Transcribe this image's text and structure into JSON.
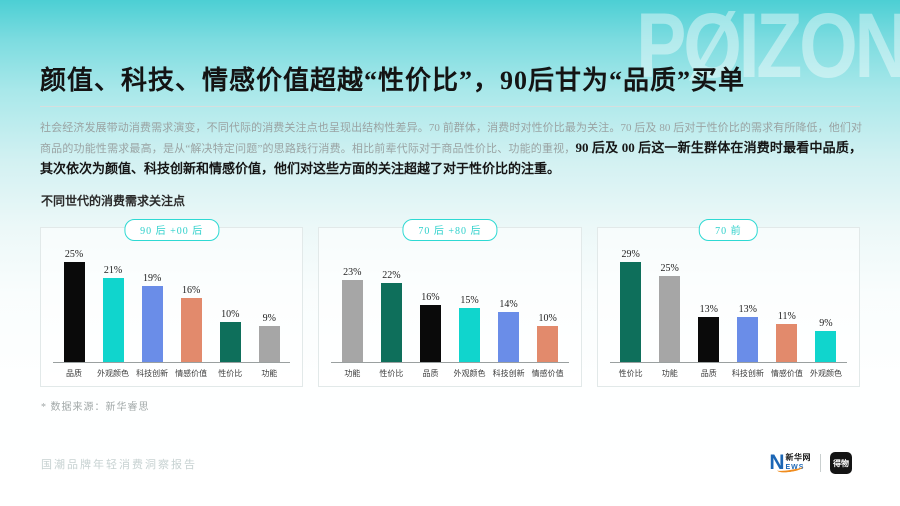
{
  "slide": {
    "watermark": "PØIZON",
    "title": "颜值、科技、情感价值超越“性价比”，90后甘为“品质”买单",
    "body_regular": "社会经济发展带动消费需求演变，不同代际的消费关注点也呈现出结构性差异。70 前群体，消费时对性价比最为关注。70 后及 80 后对于性价比的需求有所降低，他们对商品的功能性需求最高，是从“解决特定问题”的思路践行消费。相比前辈代际对于商品性价比、功能的重视，",
    "body_bold": "90 后及 00 后这一新生群体在消费时最看中品质，其次依次为颜值、科技创新和情感价值，他们对这些方面的关注超越了对于性价比的注重。",
    "section_label": "不同世代的消费需求关注点",
    "source_note": "* 数据来源：新华睿思",
    "footer_text": "国潮品牌年轻消费洞察报告",
    "logos": {
      "xinhua_n": "N",
      "xinhua_cn": "新华网",
      "xinhua_en": "EWS",
      "dewu": "得物"
    }
  },
  "colors": {
    "accent_cyan": "#2ed9d3",
    "bar_black": "#0a0a0a",
    "bar_cyan": "#10d5cd",
    "bar_blue": "#6a8de8",
    "bar_salmon": "#e28a6c",
    "bar_green": "#0e6f5b",
    "bar_gray": "#a6a6a6",
    "header_gradient_top": "#4ccfd4",
    "header_gradient_bottom": "#ffffff"
  },
  "chart_data": [
    {
      "type": "bar",
      "title": "90 后 +00 后",
      "categories": [
        "品质",
        "外观颜色",
        "科技创新",
        "情感价值",
        "性价比",
        "功能"
      ],
      "values": [
        25,
        21,
        19,
        16,
        10,
        9
      ],
      "unit": "%",
      "colors": [
        "#0a0a0a",
        "#10d5cd",
        "#6a8de8",
        "#e28a6c",
        "#0e6f5b",
        "#a6a6a6"
      ],
      "ylim": [
        0,
        25
      ],
      "grid": false,
      "legend": "none"
    },
    {
      "type": "bar",
      "title": "70 后 +80 后",
      "categories": [
        "功能",
        "性价比",
        "品质",
        "外观颜色",
        "科技创新",
        "情感价值"
      ],
      "values": [
        23,
        22,
        16,
        15,
        14,
        10
      ],
      "unit": "%",
      "colors": [
        "#a6a6a6",
        "#0e6f5b",
        "#0a0a0a",
        "#10d5cd",
        "#6a8de8",
        "#e28a6c"
      ],
      "ylim": [
        0,
        28
      ],
      "grid": false,
      "legend": "none"
    },
    {
      "type": "bar",
      "title": "70 前",
      "categories": [
        "性价比",
        "功能",
        "品质",
        "科技创新",
        "情感价值",
        "外观颜色"
      ],
      "values": [
        29,
        25,
        13,
        13,
        11,
        9
      ],
      "unit": "%",
      "colors": [
        "#0e6f5b",
        "#a6a6a6",
        "#0a0a0a",
        "#6a8de8",
        "#e28a6c",
        "#10d5cd"
      ],
      "ylim": [
        0,
        29
      ],
      "grid": false,
      "legend": "none"
    }
  ]
}
